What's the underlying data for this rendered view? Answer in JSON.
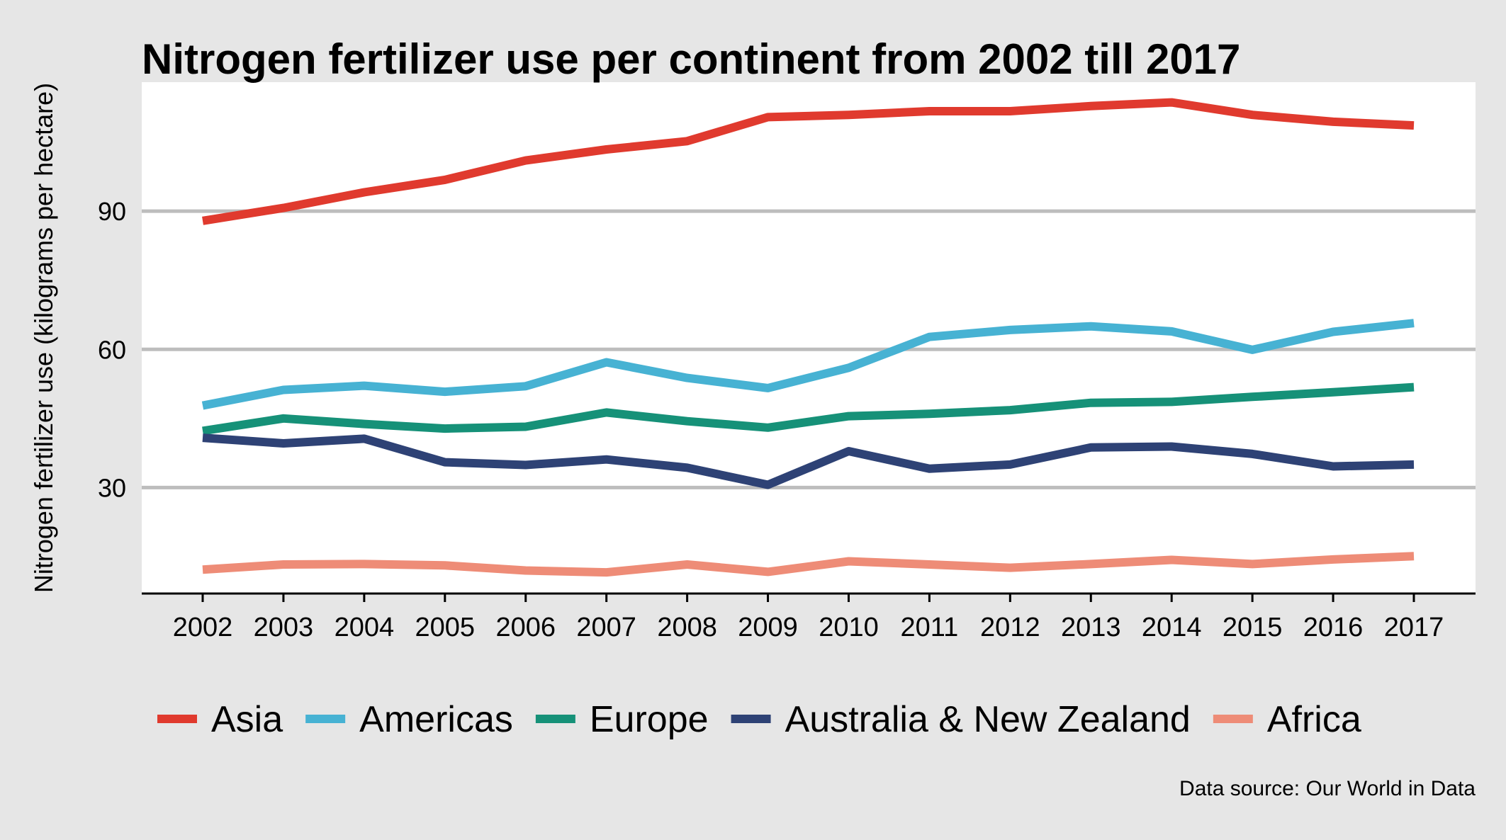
{
  "chart_data": {
    "type": "line",
    "title": "Nitrogen fertilizer use per continent from 2002 till 2017",
    "xlabel": "",
    "ylabel": "Nitrogen fertilizer use (kilograms per hectare)",
    "caption": "Data source: Our World in Data",
    "categories": [
      "2002",
      "2003",
      "2004",
      "2005",
      "2006",
      "2007",
      "2008",
      "2009",
      "2010",
      "2011",
      "2012",
      "2013",
      "2014",
      "2015",
      "2016",
      "2017"
    ],
    "yticks": [
      30,
      60,
      90
    ],
    "ylim": [
      7,
      118
    ],
    "grid": true,
    "legend_position": "bottom",
    "series": [
      {
        "name": "Asia",
        "color": "#E03A2E",
        "values": [
          87.9,
          90.7,
          94.1,
          96.8,
          101.0,
          103.4,
          105.2,
          110.4,
          110.9,
          111.7,
          111.7,
          112.8,
          113.6,
          110.9,
          109.4,
          108.6
        ]
      },
      {
        "name": "Americas",
        "color": "#47B2D3",
        "values": [
          47.8,
          51.2,
          52.1,
          50.8,
          52.0,
          57.2,
          53.8,
          51.6,
          56.0,
          62.7,
          64.2,
          65.0,
          63.9,
          59.9,
          63.8,
          65.7
        ]
      },
      {
        "name": "Europe",
        "color": "#169178",
        "values": [
          42.3,
          45.0,
          43.8,
          42.8,
          43.2,
          46.3,
          44.4,
          43.0,
          45.5,
          46.0,
          46.8,
          48.4,
          48.6,
          49.7,
          50.7,
          51.8
        ]
      },
      {
        "name": "Australia & New Zealand",
        "color": "#2E4275",
        "values": [
          40.8,
          39.6,
          40.6,
          35.5,
          34.9,
          36.1,
          34.3,
          30.6,
          37.9,
          34.1,
          35.0,
          38.7,
          38.9,
          37.3,
          34.6,
          35.0
        ]
      },
      {
        "name": "Africa",
        "color": "#EE8C77",
        "values": [
          12.2,
          13.3,
          13.4,
          13.1,
          12.0,
          11.6,
          13.3,
          11.7,
          14.0,
          13.3,
          12.6,
          13.4,
          14.3,
          13.4,
          14.4,
          15.1
        ]
      }
    ]
  }
}
